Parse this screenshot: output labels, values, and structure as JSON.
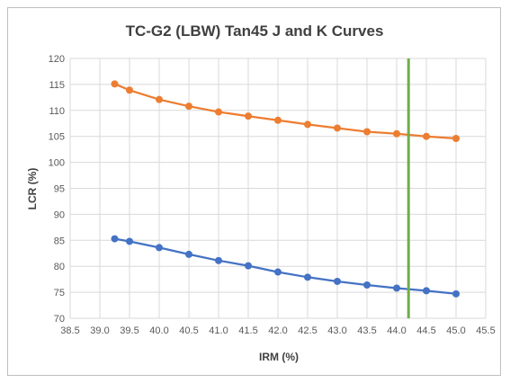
{
  "chart_data": {
    "type": "scatter",
    "title": "TC-G2 (LBW) Tan45 J and K Curves",
    "xlabel": "IRM (%)",
    "ylabel": "LCR (%)",
    "xlim": [
      38.5,
      45.5
    ],
    "ylim": [
      70,
      120
    ],
    "x_ticks": [
      "38.5",
      "39.0",
      "39.5",
      "40.0",
      "40.5",
      "41.0",
      "41.5",
      "42.0",
      "42.5",
      "43.0",
      "43.5",
      "44.0",
      "44.5",
      "45.0",
      "45.5"
    ],
    "y_ticks": [
      "70",
      "75",
      "80",
      "85",
      "90",
      "95",
      "100",
      "105",
      "110",
      "115",
      "120"
    ],
    "grid": true,
    "legend": "none",
    "series": [
      {
        "color": "#ED7D31",
        "x": [
          39.25,
          39.5,
          40.0,
          40.5,
          41.0,
          41.5,
          42.0,
          42.5,
          43.0,
          43.5,
          44.0,
          44.5,
          45.0
        ],
        "y": [
          115.1,
          113.9,
          112.1,
          110.8,
          109.7,
          108.9,
          108.1,
          107.3,
          106.6,
          105.9,
          105.5,
          105.0,
          104.6
        ]
      },
      {
        "color": "#4472C4",
        "x": [
          39.25,
          39.5,
          40.0,
          40.5,
          41.0,
          41.5,
          42.0,
          42.5,
          43.0,
          43.5,
          44.0,
          44.5,
          45.0
        ],
        "y": [
          85.3,
          84.8,
          83.6,
          82.3,
          81.1,
          80.1,
          78.9,
          77.9,
          77.1,
          76.4,
          75.8,
          75.3,
          74.7
        ]
      }
    ],
    "vertical_line": {
      "x": 44.2,
      "color": "#70AD47"
    }
  }
}
